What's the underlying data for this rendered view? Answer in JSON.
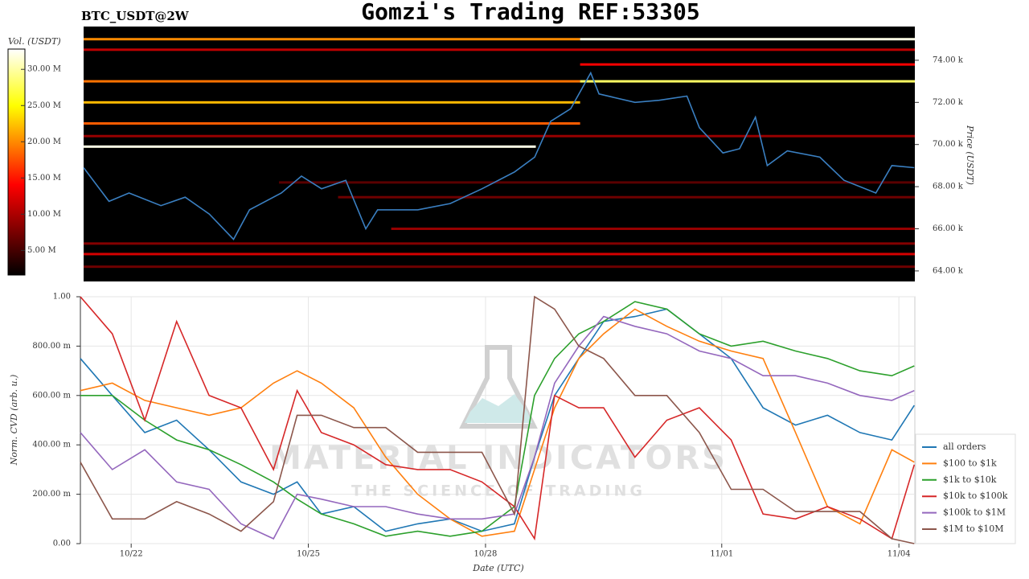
{
  "chart_data": [
    {
      "type": "heatmap",
      "title": "Gomzi's Trading REF:53305",
      "subtitle": "BTC_USDT@2W",
      "ylabel": "Price (USDT)",
      "price_color": "#3a7fc1",
      "xlim": [
        21.19,
        35.27
      ],
      "ylim": [
        63500,
        75600
      ],
      "yticks": [
        {
          "value": 64000,
          "label": "64.00 k"
        },
        {
          "value": 66000,
          "label": "66.00 k"
        },
        {
          "value": 68000,
          "label": "68.00 k"
        },
        {
          "value": 70000,
          "label": "70.00 k"
        },
        {
          "value": 72000,
          "label": "72.00 k"
        },
        {
          "value": 74000,
          "label": "74.00 k"
        }
      ],
      "x": [
        21.19,
        21.62,
        21.96,
        22.5,
        22.91,
        23.32,
        23.73,
        24.0,
        24.54,
        24.88,
        25.22,
        25.63,
        25.97,
        26.17,
        26.85,
        27.4,
        27.94,
        28.49,
        28.83,
        29.1,
        29.44,
        29.78,
        29.92,
        30.53,
        30.94,
        31.41,
        31.62,
        32.02,
        32.3,
        32.57,
        32.77,
        33.11,
        33.66,
        34.07,
        34.61,
        34.88,
        35.26
      ],
      "values": [
        68900,
        67300,
        67700,
        67100,
        67500,
        66700,
        65500,
        66900,
        67700,
        68500,
        67900,
        68300,
        66000,
        66900,
        66900,
        67200,
        67900,
        68700,
        69400,
        71100,
        71700,
        73400,
        72400,
        72000,
        72100,
        72300,
        70800,
        69600,
        69800,
        71300,
        69000,
        69700,
        69400,
        68300,
        67700,
        69000,
        68900
      ],
      "colorbar": {
        "label": "Vol. (USDT)",
        "lim": [
          1600000,
          32800000
        ],
        "ticks": [
          {
            "value": 5000000,
            "label": "5.00 M"
          },
          {
            "value": 10000000,
            "label": "10.00 M"
          },
          {
            "value": 15000000,
            "label": "15.00 M"
          },
          {
            "value": 20000000,
            "label": "20.00 M"
          },
          {
            "value": 25000000,
            "label": "25.00 M"
          },
          {
            "value": 30000000,
            "label": "30.00 M"
          }
        ]
      },
      "levels": [
        {
          "price": 75000,
          "from": 21.19,
          "to": 29.6,
          "volume": 20000000
        },
        {
          "price": 75000,
          "from": 29.6,
          "to": 35.27,
          "volume": 32000000
        },
        {
          "price": 74500,
          "from": 21.19,
          "to": 35.27,
          "volume": 11000000
        },
        {
          "price": 73800,
          "from": 29.6,
          "to": 35.27,
          "volume": 14000000
        },
        {
          "price": 73000,
          "from": 21.19,
          "to": 29.6,
          "volume": 19000000
        },
        {
          "price": 73000,
          "from": 29.6,
          "to": 35.27,
          "volume": 28000000
        },
        {
          "price": 72000,
          "from": 21.19,
          "to": 29.6,
          "volume": 22000000
        },
        {
          "price": 71000,
          "from": 21.19,
          "to": 29.6,
          "volume": 18000000
        },
        {
          "price": 70400,
          "from": 21.19,
          "to": 35.27,
          "volume": 9000000
        },
        {
          "price": 69900,
          "from": 21.19,
          "to": 28.85,
          "volume": 32000000
        },
        {
          "price": 68200,
          "from": 24.5,
          "to": 35.27,
          "volume": 6000000
        },
        {
          "price": 67500,
          "from": 25.5,
          "to": 35.27,
          "volume": 7000000
        },
        {
          "price": 66000,
          "from": 26.4,
          "to": 35.27,
          "volume": 9000000
        },
        {
          "price": 65300,
          "from": 21.19,
          "to": 35.27,
          "volume": 8000000
        },
        {
          "price": 64800,
          "from": 21.19,
          "to": 35.27,
          "volume": 12000000
        },
        {
          "price": 64200,
          "from": 21.19,
          "to": 35.27,
          "volume": 7000000
        }
      ]
    },
    {
      "type": "line",
      "xlabel": "Date (UTC)",
      "ylabel": "Norm. CVD (arb. u.)",
      "grid": true,
      "legend": "lower right",
      "xlim": [
        21.14,
        35.27
      ],
      "xticks": [
        {
          "value": 22,
          "label": "10/22"
        },
        {
          "value": 25,
          "label": "10/25"
        },
        {
          "value": 28,
          "label": "10/28"
        },
        {
          "value": 32,
          "label": "11/01"
        },
        {
          "value": 35,
          "label": "11/04"
        }
      ],
      "ylim": [
        0,
        1
      ],
      "yticks": [
        {
          "value": 0,
          "label": "0.00"
        },
        {
          "value": 0.2,
          "label": "200.00 m"
        },
        {
          "value": 0.4,
          "label": "400.00 m"
        },
        {
          "value": 0.6,
          "label": "600.00 m"
        },
        {
          "value": 0.8,
          "label": "800.00 m"
        },
        {
          "value": 1,
          "label": "1.00"
        }
      ],
      "x": [
        21.14,
        21.68,
        22.23,
        22.77,
        23.32,
        23.86,
        24.41,
        24.81,
        25.22,
        25.77,
        26.31,
        26.85,
        27.4,
        27.94,
        28.49,
        28.83,
        29.17,
        29.58,
        30.0,
        30.53,
        31.07,
        31.62,
        32.16,
        32.7,
        33.25,
        33.79,
        34.34,
        34.88,
        35.26
      ],
      "series": [
        {
          "name": "all orders",
          "color": "#1f77b4",
          "values": [
            0.75,
            0.6,
            0.45,
            0.5,
            0.38,
            0.25,
            0.2,
            0.25,
            0.12,
            0.15,
            0.05,
            0.08,
            0.1,
            0.05,
            0.08,
            0.35,
            0.6,
            0.75,
            0.9,
            0.92,
            0.95,
            0.85,
            0.75,
            0.55,
            0.48,
            0.52,
            0.45,
            0.42,
            0.56
          ]
        },
        {
          "name": "$100 to $1k",
          "color": "#ff7f0e",
          "values": [
            0.62,
            0.65,
            0.58,
            0.55,
            0.52,
            0.55,
            0.65,
            0.7,
            0.65,
            0.55,
            0.35,
            0.2,
            0.1,
            0.03,
            0.05,
            0.3,
            0.55,
            0.75,
            0.85,
            0.95,
            0.88,
            0.82,
            0.78,
            0.75,
            0.45,
            0.15,
            0.08,
            0.38,
            0.33
          ]
        },
        {
          "name": "$1k to $10k",
          "color": "#2ca02c",
          "values": [
            0.6,
            0.6,
            0.5,
            0.42,
            0.38,
            0.32,
            0.25,
            0.18,
            0.12,
            0.08,
            0.03,
            0.05,
            0.03,
            0.05,
            0.15,
            0.6,
            0.75,
            0.85,
            0.9,
            0.98,
            0.95,
            0.85,
            0.8,
            0.82,
            0.78,
            0.75,
            0.7,
            0.68,
            0.72
          ]
        },
        {
          "name": "$10k to $100k",
          "color": "#d62728",
          "values": [
            1.0,
            0.85,
            0.5,
            0.9,
            0.6,
            0.55,
            0.3,
            0.62,
            0.45,
            0.4,
            0.32,
            0.3,
            0.3,
            0.25,
            0.15,
            0.02,
            0.6,
            0.55,
            0.55,
            0.35,
            0.5,
            0.55,
            0.42,
            0.12,
            0.1,
            0.15,
            0.1,
            0.02,
            0.32
          ]
        },
        {
          "name": "$100k to $1M",
          "color": "#9467bd",
          "values": [
            0.45,
            0.3,
            0.38,
            0.25,
            0.22,
            0.08,
            0.02,
            0.2,
            0.18,
            0.15,
            0.15,
            0.12,
            0.1,
            0.1,
            0.12,
            0.35,
            0.65,
            0.8,
            0.92,
            0.88,
            0.85,
            0.78,
            0.75,
            0.68,
            0.68,
            0.65,
            0.6,
            0.58,
            0.62
          ]
        },
        {
          "name": "$1M to $10M",
          "color": "#8c564b",
          "values": [
            0.33,
            0.1,
            0.1,
            0.17,
            0.12,
            0.05,
            0.17,
            0.52,
            0.52,
            0.47,
            0.47,
            0.37,
            0.37,
            0.37,
            0.12,
            1.0,
            0.95,
            0.8,
            0.75,
            0.6,
            0.6,
            0.45,
            0.22,
            0.22,
            0.13,
            0.13,
            0.13,
            0.02,
            0.0
          ]
        }
      ]
    }
  ],
  "watermark": {
    "name": "MATERIAL INDICATORS",
    "tagline": "THE SCIENCE OF TRADING"
  }
}
